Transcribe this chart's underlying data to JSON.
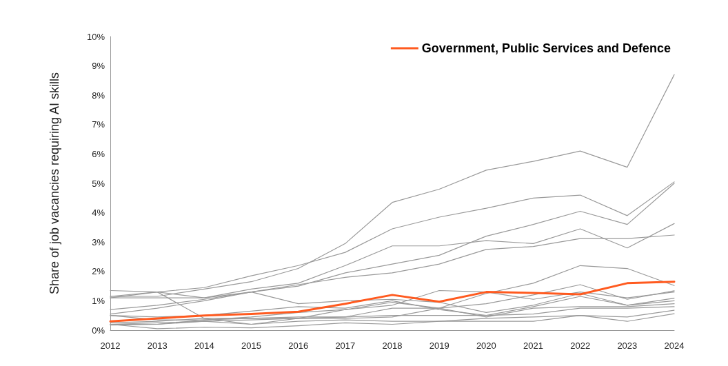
{
  "chart_data": {
    "type": "line",
    "ylabel": "Share of job vacancies requiring AI skills",
    "categories": [
      "2012",
      "2013",
      "2014",
      "2015",
      "2016",
      "2017",
      "2018",
      "2019",
      "2020",
      "2021",
      "2022",
      "2023",
      "2024"
    ],
    "ylim": [
      0,
      10
    ],
    "yticks": [
      {
        "value": 0,
        "label": "0%"
      },
      {
        "value": 1,
        "label": "1%"
      },
      {
        "value": 2,
        "label": "2%"
      },
      {
        "value": 3,
        "label": "3%"
      },
      {
        "value": 4,
        "label": "4%"
      },
      {
        "value": 5,
        "label": "5%"
      },
      {
        "value": 6,
        "label": "6%"
      },
      {
        "value": 7,
        "label": "7%"
      },
      {
        "value": 8,
        "label": "8%"
      },
      {
        "value": 9,
        "label": "9%"
      },
      {
        "value": 10,
        "label": "10%"
      }
    ],
    "grid": false,
    "legend": "top right",
    "marker": "none",
    "line_style": "solid",
    "series": [
      {
        "color": "#999999",
        "values": [
          1.15,
          1.15,
          1.4,
          1.65,
          2.1,
          2.95,
          4.35,
          4.8,
          5.45,
          5.75,
          6.1,
          5.55,
          8.7
        ]
      },
      {
        "color": "#999999",
        "values": [
          1.15,
          1.3,
          1.45,
          1.85,
          2.2,
          2.65,
          3.45,
          3.85,
          4.15,
          4.5,
          4.6,
          3.9,
          5.05
        ]
      },
      {
        "color": "#999999",
        "values": [
          0.55,
          0.75,
          1.0,
          1.3,
          1.5,
          1.95,
          2.25,
          2.55,
          3.2,
          3.6,
          4.05,
          3.6,
          5.0
        ]
      },
      {
        "color": "#999999",
        "values": [
          1.1,
          1.3,
          1.1,
          1.4,
          1.6,
          2.2,
          2.87,
          2.87,
          3.05,
          2.95,
          3.45,
          2.8,
          3.63
        ]
      },
      {
        "color": "#999999",
        "values": [
          0.7,
          0.85,
          1.05,
          1.3,
          1.55,
          1.8,
          1.95,
          2.25,
          2.75,
          2.85,
          3.12,
          3.12,
          3.24
        ]
      },
      {
        "color": "#999999",
        "values": [
          0.2,
          0.2,
          0.3,
          0.35,
          0.4,
          0.4,
          0.45,
          0.75,
          1.25,
          1.6,
          2.2,
          2.1,
          1.52
        ]
      },
      {
        "color": "#999999",
        "values": [
          1.35,
          1.3,
          0.4,
          0.2,
          0.4,
          0.7,
          0.95,
          0.75,
          0.9,
          1.2,
          1.55,
          1.05,
          1.34
        ]
      },
      {
        "color": "#999999",
        "values": [
          0.5,
          0.35,
          0.35,
          0.45,
          0.6,
          0.7,
          0.85,
          1.35,
          1.3,
          1.05,
          1.3,
          1.1,
          1.3
        ]
      },
      {
        "color": "#999999",
        "values": [
          1.1,
          1.1,
          1.1,
          1.3,
          0.9,
          1.0,
          1.05,
          0.95,
          0.6,
          0.85,
          1.25,
          0.85,
          1.09
        ]
      },
      {
        "color": "#999999",
        "values": [
          0.5,
          0.45,
          0.5,
          0.65,
          0.8,
          0.75,
          1.0,
          0.7,
          0.5,
          0.8,
          1.15,
          0.85,
          1.0
        ]
      },
      {
        "color": "#999999",
        "values": [
          0.17,
          0.2,
          0.35,
          0.4,
          0.45,
          0.45,
          0.75,
          0.75,
          0.45,
          0.75,
          0.8,
          0.8,
          0.9
        ]
      },
      {
        "color": "#999999",
        "values": [
          0.25,
          0.3,
          0.4,
          0.4,
          0.4,
          0.45,
          0.5,
          0.5,
          0.5,
          0.55,
          0.75,
          0.75,
          0.8
        ]
      },
      {
        "color": "#999999",
        "values": [
          0.2,
          0.25,
          0.3,
          0.2,
          0.3,
          0.35,
          0.3,
          0.3,
          0.4,
          0.45,
          0.5,
          0.45,
          0.68
        ]
      },
      {
        "color": "#999999",
        "values": [
          0.2,
          0.05,
          0.1,
          0.08,
          0.15,
          0.25,
          0.2,
          0.3,
          0.3,
          0.3,
          0.5,
          0.3,
          0.56
        ]
      },
      {
        "name": "Government, Public Services and Defence",
        "color": "#ff5a1f",
        "values": [
          0.3,
          0.4,
          0.5,
          0.55,
          0.63,
          0.9,
          1.2,
          0.97,
          1.3,
          1.27,
          1.22,
          1.6,
          1.65
        ]
      }
    ]
  }
}
